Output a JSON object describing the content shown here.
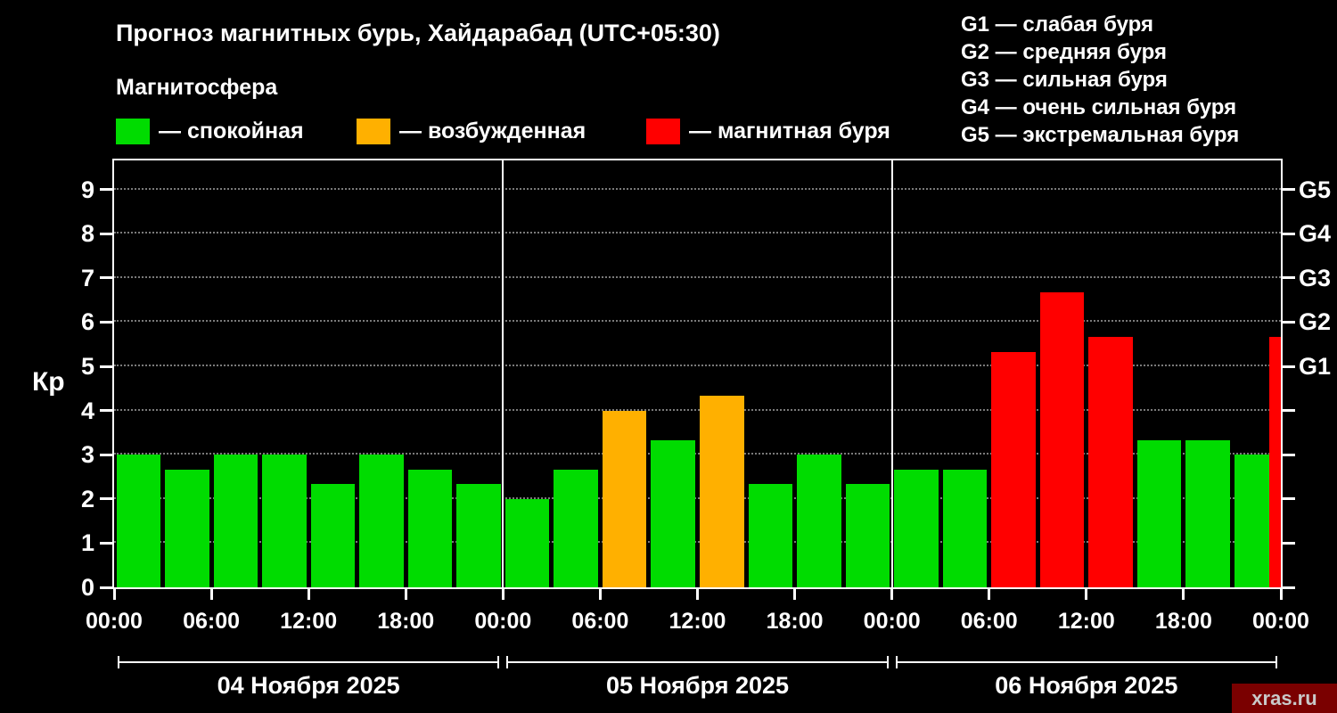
{
  "header": {
    "title": "Прогноз магнитных бурь, Хайдарабад (UTC+05:30)",
    "subtitle": "Магнитосфера",
    "legend": [
      {
        "label": "— спокойная",
        "color_key": "green"
      },
      {
        "label": "— возбужденная",
        "color_key": "orange"
      },
      {
        "label": "— магнитная буря",
        "color_key": "red"
      }
    ],
    "g_scale": [
      "G1 — слабая буря",
      "G2 — средняя буря",
      "G3 — сильная буря",
      "G4 — очень сильная буря",
      "G5 — экстремальная буря"
    ]
  },
  "watermark": "xras.ru",
  "chart_data": {
    "type": "bar",
    "title": "Прогноз магнитных бурь, Хайдарабад (UTC+05:30)",
    "ylabel": "Кр",
    "ylim": [
      0,
      9.7
    ],
    "yticks": [
      0,
      1,
      2,
      3,
      4,
      5,
      6,
      7,
      8,
      9
    ],
    "right_ticks": [
      {
        "label": "G1",
        "kp": 5
      },
      {
        "label": "G2",
        "kp": 6
      },
      {
        "label": "G3",
        "kp": 7
      },
      {
        "label": "G4",
        "kp": 8
      },
      {
        "label": "G5",
        "kp": 9
      }
    ],
    "hours_per_bar": 3,
    "x_tick_hours": [
      0,
      6,
      12,
      18,
      24,
      30,
      36,
      42,
      48,
      54,
      60,
      66,
      72
    ],
    "x_tick_labels": [
      "00:00",
      "06:00",
      "12:00",
      "18:00",
      "00:00",
      "06:00",
      "12:00",
      "18:00",
      "00:00",
      "06:00",
      "12:00",
      "18:00",
      "00:00"
    ],
    "day_separators_hours": [
      24,
      48
    ],
    "days": [
      {
        "date": "04 Ноября 2025",
        "values": [
          3.0,
          2.67,
          3.0,
          3.0,
          2.33,
          3.0,
          2.67,
          2.33
        ],
        "levels": [
          "green",
          "green",
          "green",
          "green",
          "green",
          "green",
          "green",
          "green"
        ]
      },
      {
        "date": "05 Ноября 2025",
        "values": [
          2.0,
          2.67,
          4.0,
          3.33,
          4.33,
          2.33,
          3.0,
          2.33
        ],
        "levels": [
          "green",
          "green",
          "orange",
          "green",
          "orange",
          "green",
          "green",
          "green"
        ]
      },
      {
        "date": "06 Ноября 2025",
        "values": [
          2.67,
          2.67,
          5.33,
          6.67,
          5.67,
          3.33,
          3.33,
          3.0
        ],
        "levels": [
          "green",
          "green",
          "red",
          "red",
          "red",
          "green",
          "green",
          "green"
        ]
      }
    ],
    "partial_last_bar": {
      "kp": 5.67,
      "level": "red"
    },
    "level_colors": {
      "green": "#00dc00",
      "orange": "#ffb000",
      "red": "#ff0000"
    },
    "level_names": {
      "green": "спокойная",
      "orange": "возбужденная",
      "red": "магнитная буря"
    },
    "grid": "dotted-horizontal",
    "legend_position": "top-left"
  }
}
